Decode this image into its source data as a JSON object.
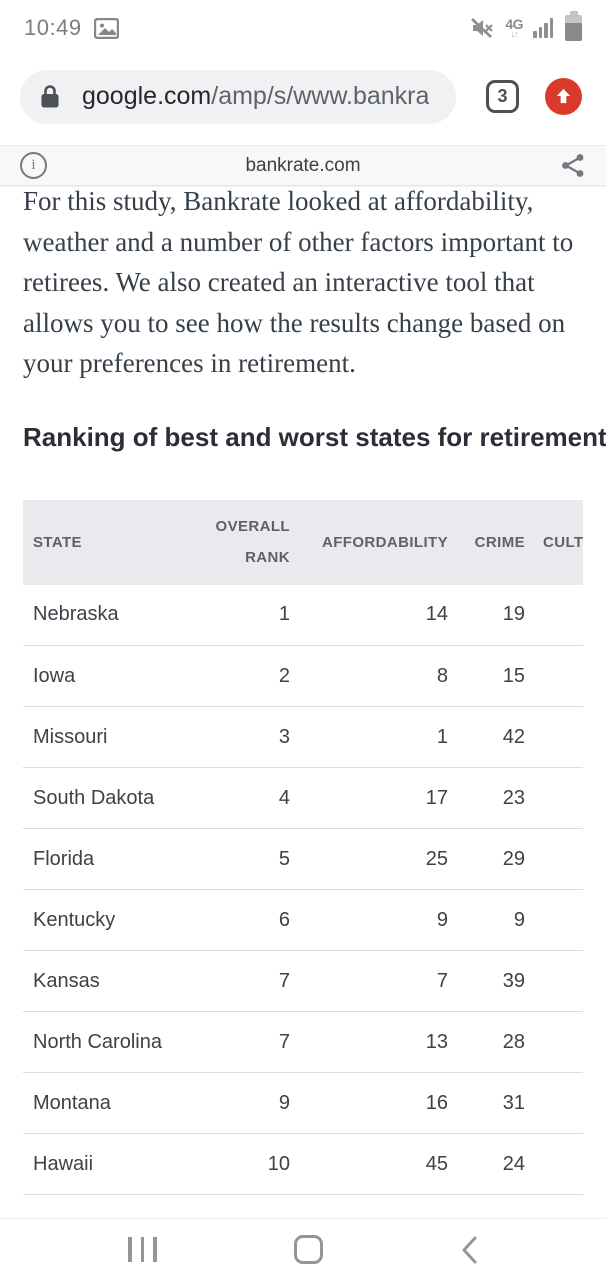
{
  "status_bar": {
    "time": "10:49",
    "icons_left": [
      "screenshot-image-icon"
    ],
    "icons_right": [
      "mute-icon",
      "4g-data-icon",
      "signal-strength-icon",
      "battery-icon"
    ],
    "network_label": "4G",
    "network_arrows": "↓↑"
  },
  "browser": {
    "url_host": "google.com",
    "url_path": "/amp/s/www.bankra",
    "tab_count": "3",
    "update_accent_color": "#d93a2b"
  },
  "amp_bar": {
    "source": "bankrate.com",
    "icons": [
      "info-icon",
      "share-icon"
    ]
  },
  "article": {
    "paragraph": "For this study, Bankrate looked at affordability, weather and a number of other factors important to retirees. We also created an interactive tool that allows you to see how the results change based on your preferences in retirement.",
    "heading": "Ranking of best and worst states for retirement"
  },
  "table": {
    "columns": [
      {
        "key": "state",
        "label": "State"
      },
      {
        "key": "overall_rank",
        "label": "Overall Rank"
      },
      {
        "key": "affordability",
        "label": "Affordability"
      },
      {
        "key": "crime",
        "label": "Crime"
      },
      {
        "key": "culture",
        "label": "Culture"
      }
    ],
    "rows": [
      {
        "state": "Nebraska",
        "overall_rank": "1",
        "affordability": "14",
        "crime": "19",
        "culture": ""
      },
      {
        "state": "Iowa",
        "overall_rank": "2",
        "affordability": "8",
        "crime": "15",
        "culture": ""
      },
      {
        "state": "Missouri",
        "overall_rank": "3",
        "affordability": "1",
        "crime": "42",
        "culture": ""
      },
      {
        "state": "South Dakota",
        "overall_rank": "4",
        "affordability": "17",
        "crime": "23",
        "culture": ""
      },
      {
        "state": "Florida",
        "overall_rank": "5",
        "affordability": "25",
        "crime": "29",
        "culture": ""
      },
      {
        "state": "Kentucky",
        "overall_rank": "6",
        "affordability": "9",
        "crime": "9",
        "culture": ""
      },
      {
        "state": "Kansas",
        "overall_rank": "7",
        "affordability": "7",
        "crime": "39",
        "culture": ""
      },
      {
        "state": "North Carolina",
        "overall_rank": "7",
        "affordability": "13",
        "crime": "28",
        "culture": ""
      },
      {
        "state": "Montana",
        "overall_rank": "9",
        "affordability": "16",
        "crime": "31",
        "culture": ""
      },
      {
        "state": "Hawaii",
        "overall_rank": "10",
        "affordability": "45",
        "crime": "24",
        "culture": ""
      }
    ]
  },
  "nav_bar": {
    "icons": [
      "recents-icon",
      "home-icon",
      "back-icon"
    ]
  },
  "colors": {
    "table_header_bg": "#eaeaee",
    "row_divider": "#dbdbdf",
    "omnibox_bg": "#eff1f3",
    "amp_bar_bg": "#f7f8f9",
    "status_gray": "#7d7f83",
    "update_red": "#d93a2b"
  }
}
